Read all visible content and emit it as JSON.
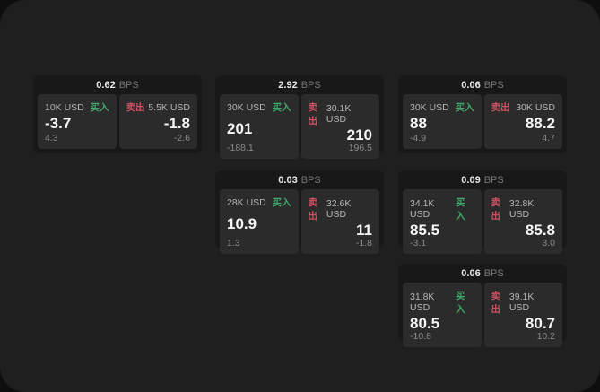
{
  "colors": {
    "buy": "#3fa86a",
    "sell": "#cc5363"
  },
  "labels": {
    "bps_unit": "BPS",
    "buy": "买入",
    "sell": "卖出"
  },
  "cards": [
    {
      "bps": "0.62",
      "buy": {
        "size": "10K USD",
        "value": "-3.7",
        "delta": "4.3"
      },
      "sell": {
        "size": "5.5K USD",
        "value": "-1.8",
        "delta": "-2.6"
      }
    },
    {
      "bps": "2.92",
      "buy": {
        "size": "30K USD",
        "value": "201",
        "delta": "-188.1"
      },
      "sell": {
        "size": "30.1K USD",
        "value": "210",
        "delta": "196.5"
      }
    },
    {
      "bps": "0.06",
      "buy": {
        "size": "30K USD",
        "value": "88",
        "delta": "-4.9"
      },
      "sell": {
        "size": "30K USD",
        "value": "88.2",
        "delta": "4.7"
      }
    },
    {
      "bps": "0.03",
      "buy": {
        "size": "28K USD",
        "value": "10.9",
        "delta": "1.3"
      },
      "sell": {
        "size": "32.6K USD",
        "value": "11",
        "delta": "-1.8"
      }
    },
    {
      "bps": "0.09",
      "buy": {
        "size": "34.1K USD",
        "value": "85.5",
        "delta": "-3.1"
      },
      "sell": {
        "size": "32.8K USD",
        "value": "85.8",
        "delta": "3.0"
      }
    },
    {
      "bps": "0.06",
      "buy": {
        "size": "31.8K USD",
        "value": "80.5",
        "delta": "-10.8"
      },
      "sell": {
        "size": "39.1K USD",
        "value": "80.7",
        "delta": "10.2"
      }
    }
  ]
}
